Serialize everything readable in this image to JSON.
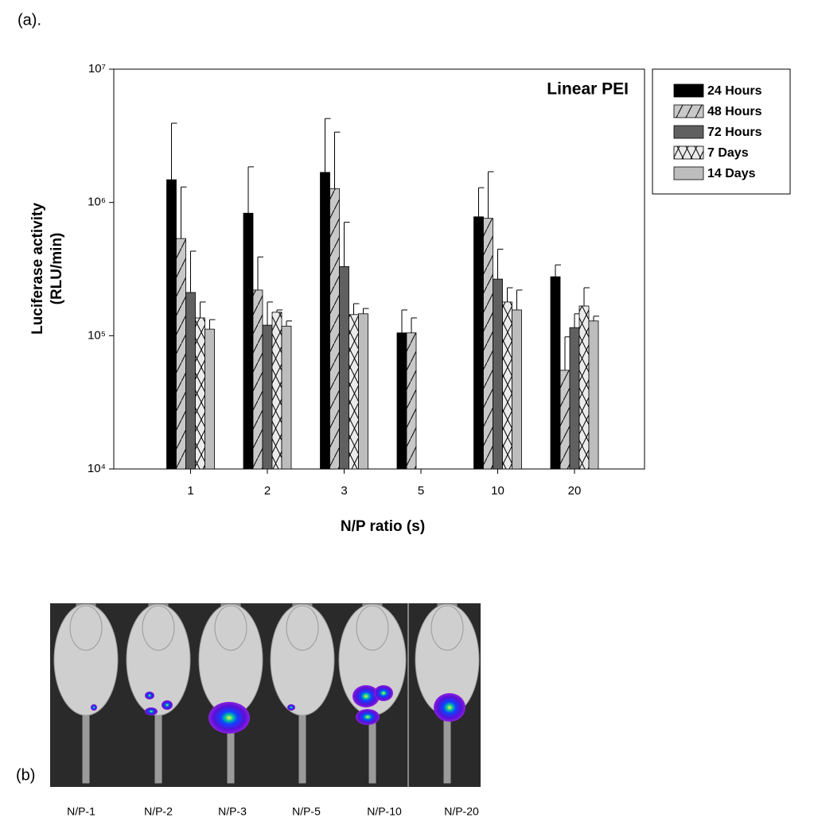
{
  "panel_a_label": "(a).",
  "chart_data": {
    "type": "bar",
    "log_scale": true,
    "annotation": "Linear PEI",
    "xlabel": "N/P ratio (s)",
    "ylabel": [
      "Luciferase activity",
      "(RLU/min)"
    ],
    "categories": [
      "1",
      "2",
      "3",
      "5",
      "10",
      "20"
    ],
    "ylim": [
      10000,
      10000000
    ],
    "yticks": [
      {
        "value": 10000,
        "label": "10⁴"
      },
      {
        "value": 100000,
        "label": "10⁵"
      },
      {
        "value": 1000000,
        "label": "10⁶"
      },
      {
        "value": 10000000,
        "label": "10⁷"
      }
    ],
    "legend": "outside-top-right",
    "series": [
      {
        "name": "24 Hours",
        "color": "#000000",
        "pattern": "solid",
        "values": [
          1480000,
          830000,
          1680000,
          105000,
          780000,
          277000
        ],
        "errors": [
          2450000,
          1020000,
          2580000,
          51000,
          510000,
          63000
        ]
      },
      {
        "name": "48 Hours",
        "color": "#c8c8c8",
        "pattern": "diagonal",
        "values": [
          536000,
          220000,
          1270000,
          105000,
          760000,
          55000
        ],
        "errors": [
          770000,
          170000,
          2100000,
          31000,
          940000,
          43000
        ]
      },
      {
        "name": "72 Hours",
        "color": "#606060",
        "pattern": "solid",
        "values": [
          211000,
          120000,
          330000,
          null,
          266000,
          115000
        ],
        "errors": [
          220000,
          59000,
          380000,
          null,
          180000,
          31000
        ]
      },
      {
        "name": "7 Days",
        "color": "#ebebeb",
        "pattern": "cross",
        "values": [
          136000,
          150000,
          144000,
          null,
          179000,
          167000
        ],
        "errors": [
          43000,
          6000,
          30000,
          null,
          50000,
          62000
        ]
      },
      {
        "name": "14 Days",
        "color": "#bdbdbd",
        "pattern": "solid",
        "values": [
          112000,
          118000,
          146000,
          null,
          156000,
          129000
        ],
        "errors": [
          20000,
          11000,
          14000,
          null,
          64000,
          11000
        ]
      }
    ]
  },
  "panel_b": {
    "label": "(b)",
    "labels": [
      "N/P-1",
      "N/P-2",
      "N/P-3",
      "N/P-5",
      "N/P-10",
      "N/P-20"
    ]
  }
}
